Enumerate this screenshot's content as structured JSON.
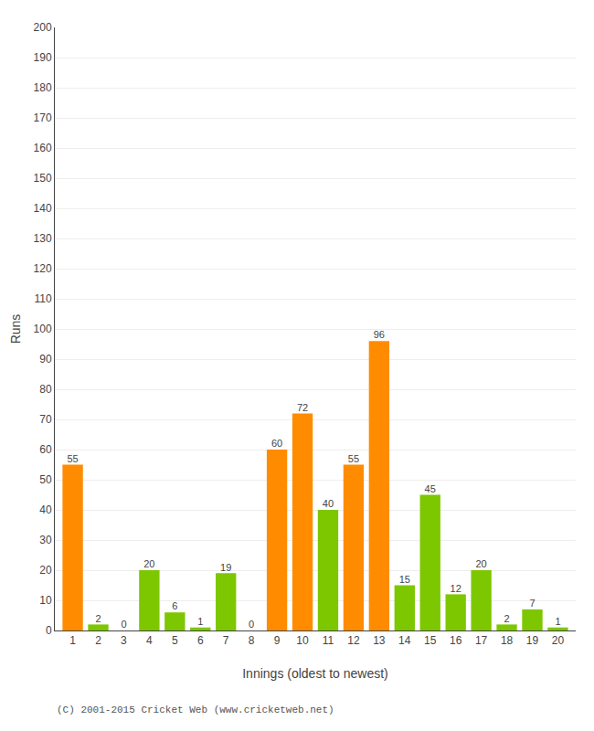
{
  "chart_data": {
    "type": "bar",
    "x": [
      1,
      2,
      3,
      4,
      5,
      6,
      7,
      8,
      9,
      10,
      11,
      12,
      13,
      14,
      15,
      16,
      17,
      18,
      19,
      20
    ],
    "values": [
      55,
      2,
      0,
      20,
      6,
      1,
      19,
      0,
      60,
      72,
      40,
      55,
      96,
      15,
      45,
      12,
      20,
      2,
      7,
      1
    ],
    "colors": [
      "#ff8c00",
      "#7dc700",
      "#7dc700",
      "#7dc700",
      "#7dc700",
      "#7dc700",
      "#7dc700",
      "#7dc700",
      "#ff8c00",
      "#ff8c00",
      "#7dc700",
      "#ff8c00",
      "#ff8c00",
      "#7dc700",
      "#7dc700",
      "#7dc700",
      "#7dc700",
      "#7dc700",
      "#7dc700",
      "#7dc700"
    ],
    "xlabel": "Innings (oldest to newest)",
    "ylabel": "Runs",
    "xlim": [
      0.3,
      20.7
    ],
    "xticks": [
      1,
      2,
      3,
      4,
      5,
      6,
      7,
      8,
      9,
      10,
      11,
      12,
      13,
      14,
      15,
      16,
      17,
      18,
      19,
      20
    ],
    "ylim": [
      0,
      200
    ],
    "yticks": [
      0,
      10,
      20,
      30,
      40,
      50,
      60,
      70,
      80,
      90,
      100,
      110,
      120,
      130,
      140,
      150,
      160,
      170,
      180,
      190,
      200
    ],
    "grid": true,
    "data_labels": true,
    "annotations": [
      "(C) 2001-2015 Cricket Web (www.cricketweb.net)"
    ]
  }
}
